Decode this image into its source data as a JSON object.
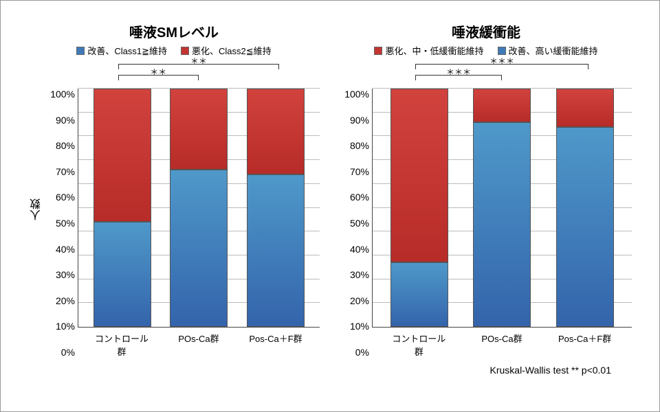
{
  "colors": {
    "blue": "#3f7ab8",
    "red": "#c23531",
    "grid": "#bbbbbb",
    "axis": "#444444",
    "bg": "#ffffff"
  },
  "font": {
    "title_size": 20,
    "axis_size": 14,
    "legend_size": 13
  },
  "ylabel": "人数",
  "yaxis": {
    "min": 0,
    "max": 100,
    "step": 10,
    "ticks": [
      "100%",
      "90%",
      "80%",
      "70%",
      "60%",
      "50%",
      "40%",
      "30%",
      "20%",
      "10%",
      "0%"
    ]
  },
  "categories": [
    "コントロール群",
    "POs-Ca群",
    "Pos-Ca＋F群"
  ],
  "left": {
    "title": "唾液SMレベル",
    "legend_order": [
      "blue",
      "red"
    ],
    "legend": {
      "blue": "改善、Class1≧維持",
      "red": "悪化、Class2≦維持"
    },
    "type": "stacked-bar",
    "stack_order": [
      "red",
      "blue"
    ],
    "values": {
      "blue": [
        44,
        66,
        64
      ],
      "red": [
        56,
        34,
        36
      ]
    },
    "significance": [
      {
        "from": 0,
        "to": 1,
        "label": "＊＊",
        "y": 20
      },
      {
        "from": 0,
        "to": 2,
        "label": "＊＊",
        "y": 4
      }
    ]
  },
  "right": {
    "title": "唾液緩衝能",
    "legend_order": [
      "red",
      "blue"
    ],
    "legend": {
      "red": "悪化、中・低緩衝能維持",
      "blue": "改善、高い緩衝能維持"
    },
    "type": "stacked-bar",
    "stack_order": [
      "red",
      "blue"
    ],
    "values": {
      "blue": [
        27,
        86,
        84
      ],
      "red": [
        73,
        14,
        16
      ]
    },
    "significance": [
      {
        "from": 0,
        "to": 1,
        "label": "＊＊＊",
        "y": 20
      },
      {
        "from": 0,
        "to": 2,
        "label": "＊＊＊",
        "y": 4
      }
    ]
  },
  "footer": "Kruskal-Wallis test  ** p<0.01"
}
